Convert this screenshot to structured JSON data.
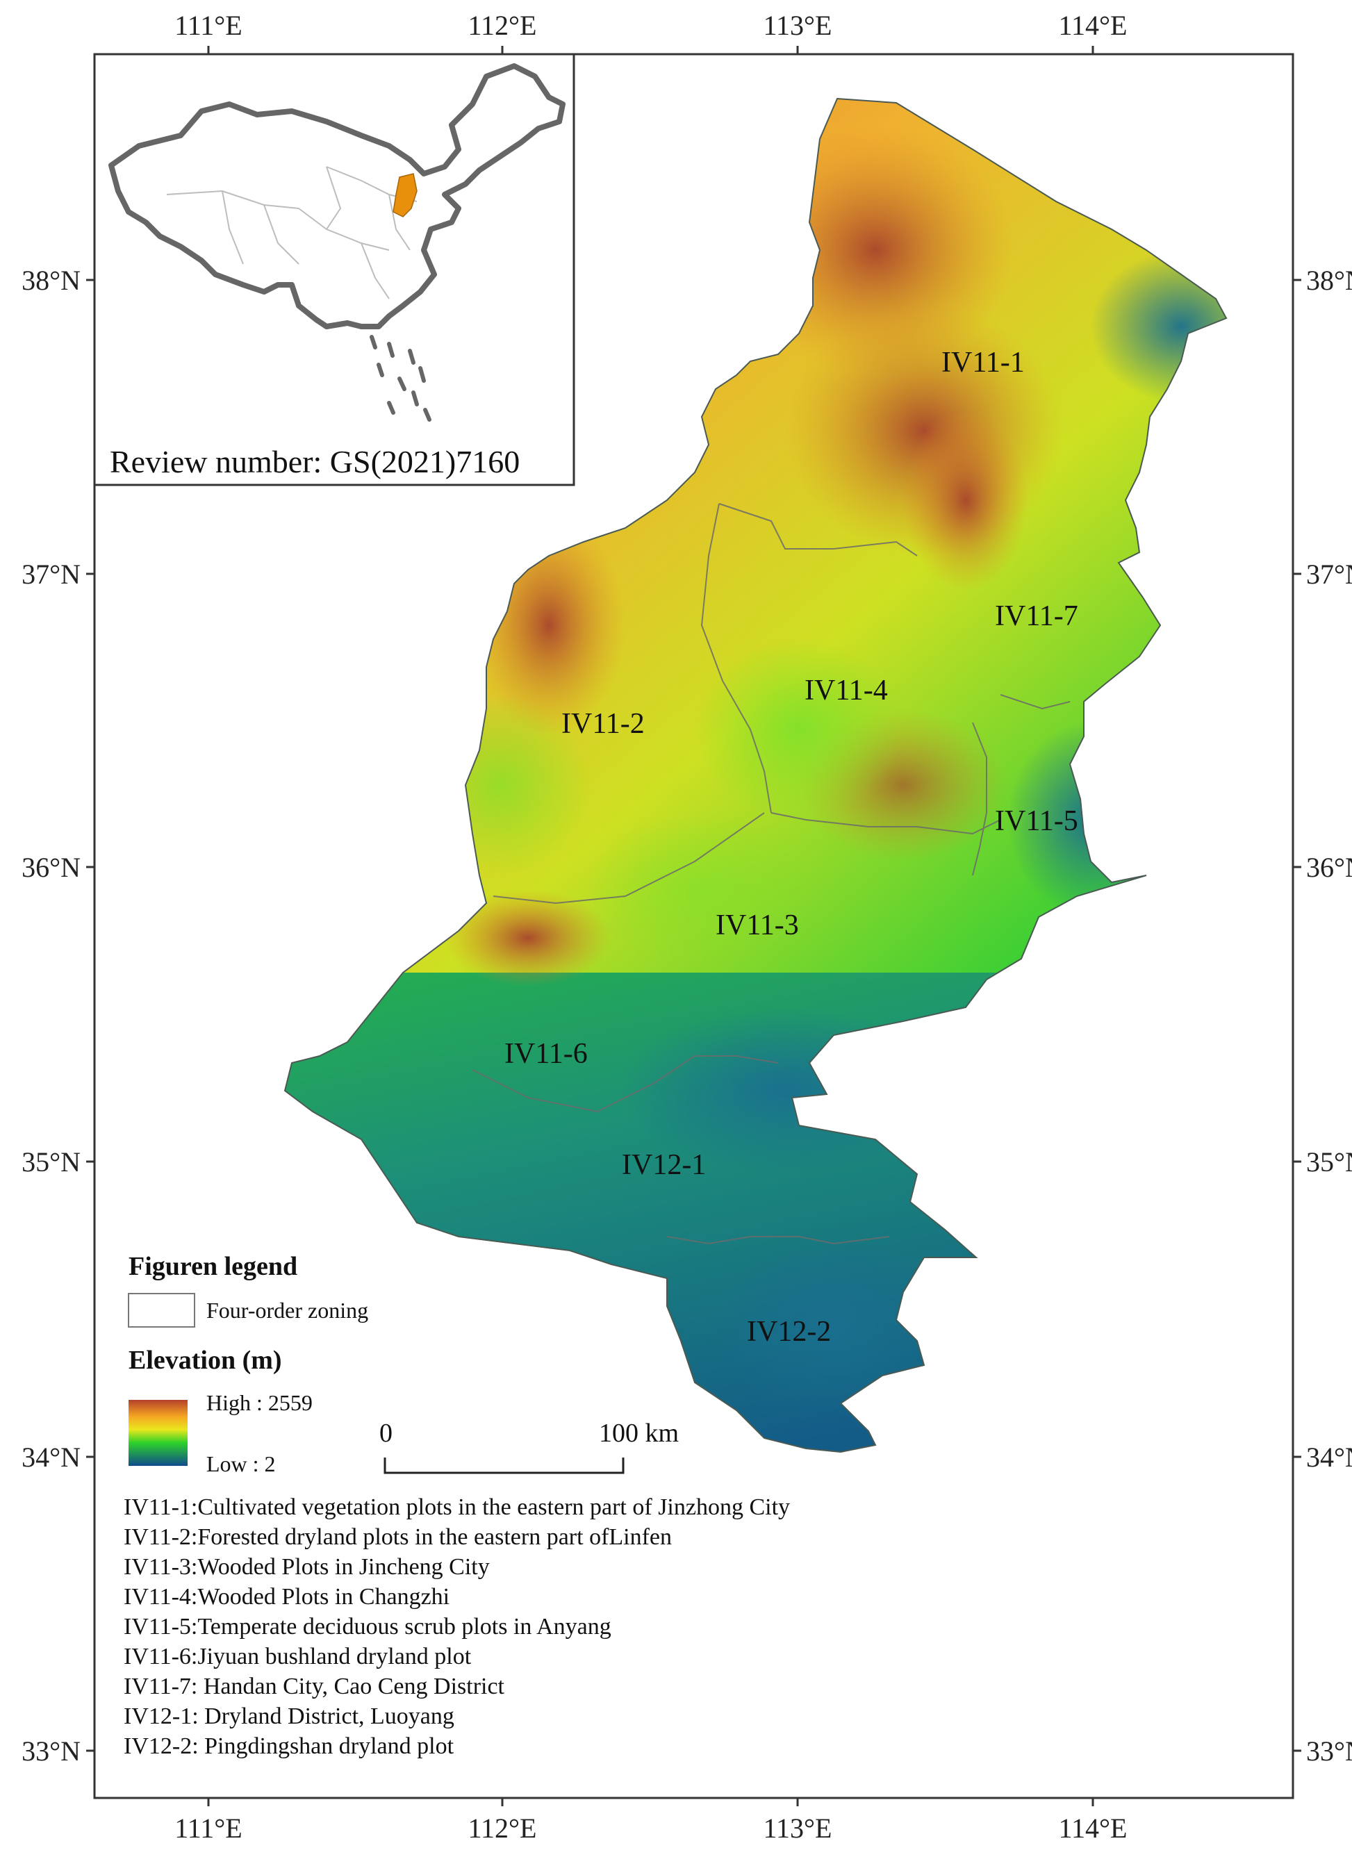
{
  "map": {
    "top_lon_ticks": [
      "111°E",
      "112°E",
      "113°E",
      "114°E"
    ],
    "bottom_lon_ticks": [
      "111°E",
      "112°E",
      "113°E",
      "114°E"
    ],
    "left_lat_ticks": [
      "38°N",
      "37°N",
      "36°N",
      "35°N",
      "34°N",
      "33°N"
    ],
    "right_lat_ticks": [
      "38°N",
      "37°N",
      "36°N",
      "35°N",
      "34°N",
      "33°N"
    ],
    "zones": [
      "IV11-1",
      "IV11-2",
      "IV11-3",
      "IV11-4",
      "IV11-5",
      "IV11-6",
      "IV11-7",
      "IV12-1",
      "IV12-2"
    ]
  },
  "inset": {
    "review_number": "Review number: GS(2021)7160",
    "highlight_color": "#e8900c"
  },
  "legend": {
    "title": "Figuren legend",
    "zoning_label": "Four-order zoning",
    "elevation_title": "Elevation (m)",
    "high_label": "High : 2559",
    "low_label": "Low : 2",
    "colors": {
      "high": "#b5402a",
      "mid_high": "#f5a623",
      "mid": "#e9e71d",
      "mid_low": "#2ed12a",
      "low": "#0f4c8c"
    }
  },
  "scale_bar": {
    "start": "0",
    "end": "100 km"
  },
  "descriptions": [
    "IV11-1:Cultivated vegetation plots in the eastern part of Jinzhong City",
    "IV11-2:Forested dryland plots in the eastern part ofLinfen",
    "IV11-3:Wooded Plots in Jincheng City",
    "IV11-4:Wooded Plots in Changzhi",
    "IV11-5:Temperate deciduous scrub plots in Anyang",
    "IV11-6:Jiyuan bushland dryland plot",
    "IV11-7: Handan City, Cao Ceng District",
    "IV12-1: Dryland District, Luoyang",
    "IV12-2: Pingdingshan dryland plot"
  ]
}
